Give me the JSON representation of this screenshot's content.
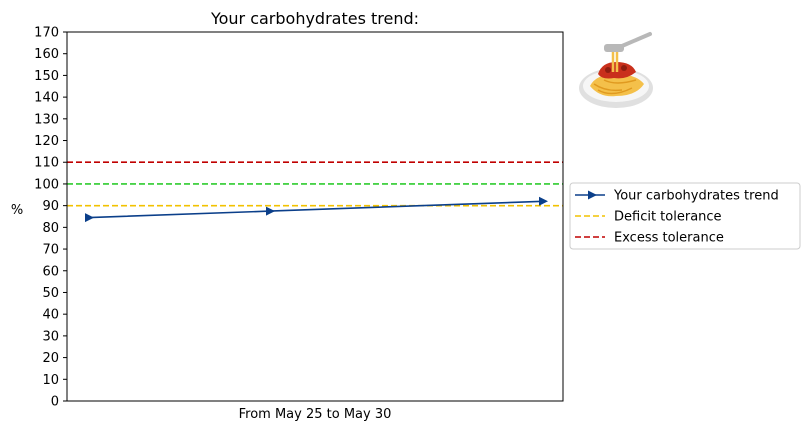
{
  "chart_data": {
    "type": "line",
    "title": "Your carbohydrates trend:",
    "xlabel": "From May 25 to May 30",
    "ylabel": "%",
    "ylim": [
      0,
      170
    ],
    "ytick_step": 10,
    "x": [
      0,
      1,
      2
    ],
    "series": [
      {
        "name": "Your carbohydrates trend",
        "values": [
          84.5,
          87.5,
          92
        ],
        "color": "#0b3f8a",
        "marker": "triangle-right",
        "style": "solid"
      }
    ],
    "reference_lines": [
      {
        "name": "Deficit tolerance",
        "value": 90,
        "color": "#f2c200",
        "style": "dashed",
        "in_legend": true
      },
      {
        "name": "Excess tolerance",
        "value": 110,
        "color": "#c00000",
        "style": "dashed",
        "in_legend": true
      },
      {
        "name": "",
        "value": 100,
        "color": "#2ecc2e",
        "style": "dashed",
        "in_legend": false
      }
    ],
    "legend_position": "right",
    "grid": false,
    "icon": "spaghetti-icon"
  }
}
